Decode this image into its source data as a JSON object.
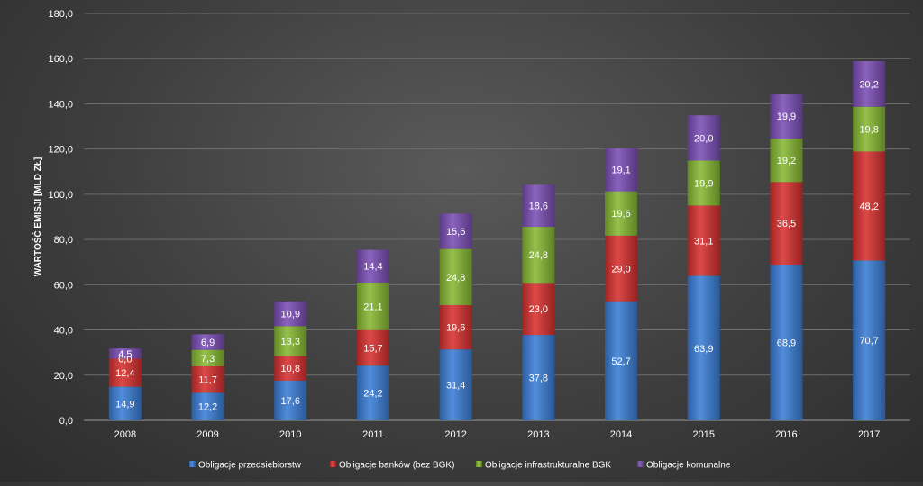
{
  "chart_data": {
    "type": "bar",
    "stacked": true,
    "title": "",
    "xlabel": "",
    "ylabel": "WARTOŚĆ EMISJI [MLD ZŁ]",
    "ylim": [
      0,
      180
    ],
    "yticks": [
      "0,0",
      "20,0",
      "40,0",
      "60,0",
      "80,0",
      "100,0",
      "120,0",
      "140,0",
      "160,0",
      "180,0"
    ],
    "categories": [
      "2008",
      "2009",
      "2010",
      "2011",
      "2012",
      "2013",
      "2014",
      "2015",
      "2016",
      "2017"
    ],
    "grid": true,
    "legend_position": "bottom",
    "series": [
      {
        "name": "Obligacje przedsiębiorstw",
        "color": "#3a7dd6",
        "values": [
          14.9,
          12.2,
          17.6,
          24.2,
          31.4,
          37.8,
          52.7,
          63.9,
          68.9,
          70.7
        ],
        "labels": [
          "14,9",
          "12,2",
          "17,6",
          "24,2",
          "31,4",
          "37,8",
          "52,7",
          "63,9",
          "68,9",
          "70,7"
        ]
      },
      {
        "name": "Obligacje banków (bez BGK)",
        "color": "#d7302f",
        "values": [
          12.4,
          11.7,
          10.8,
          15.7,
          19.6,
          23.0,
          29.0,
          31.1,
          36.5,
          48.2
        ],
        "labels": [
          "12,4",
          "11,7",
          "10,8",
          "15,7",
          "19,6",
          "23,0",
          "29,0",
          "31,1",
          "36,5",
          "48,2"
        ]
      },
      {
        "name": "Obligacje infrastrukturalne BGK",
        "color": "#86b833",
        "values": [
          0.0,
          7.3,
          13.3,
          21.1,
          24.8,
          24.8,
          19.6,
          19.9,
          19.2,
          19.8
        ],
        "labels": [
          "0,0",
          "7,3",
          "13,3",
          "21,1",
          "24,8",
          "24,8",
          "19,6",
          "19,9",
          "19,2",
          "19,8"
        ]
      },
      {
        "name": "Obligacje komunalne",
        "color": "#7b4eb5",
        "values": [
          4.5,
          6.9,
          10.9,
          14.4,
          15.6,
          18.6,
          19.1,
          20.0,
          19.9,
          20.2
        ],
        "labels": [
          "4,5",
          "6,9",
          "10,9",
          "14,4",
          "15,6",
          "18,6",
          "19,1",
          "20,0",
          "19,9",
          "20,2"
        ]
      }
    ]
  }
}
